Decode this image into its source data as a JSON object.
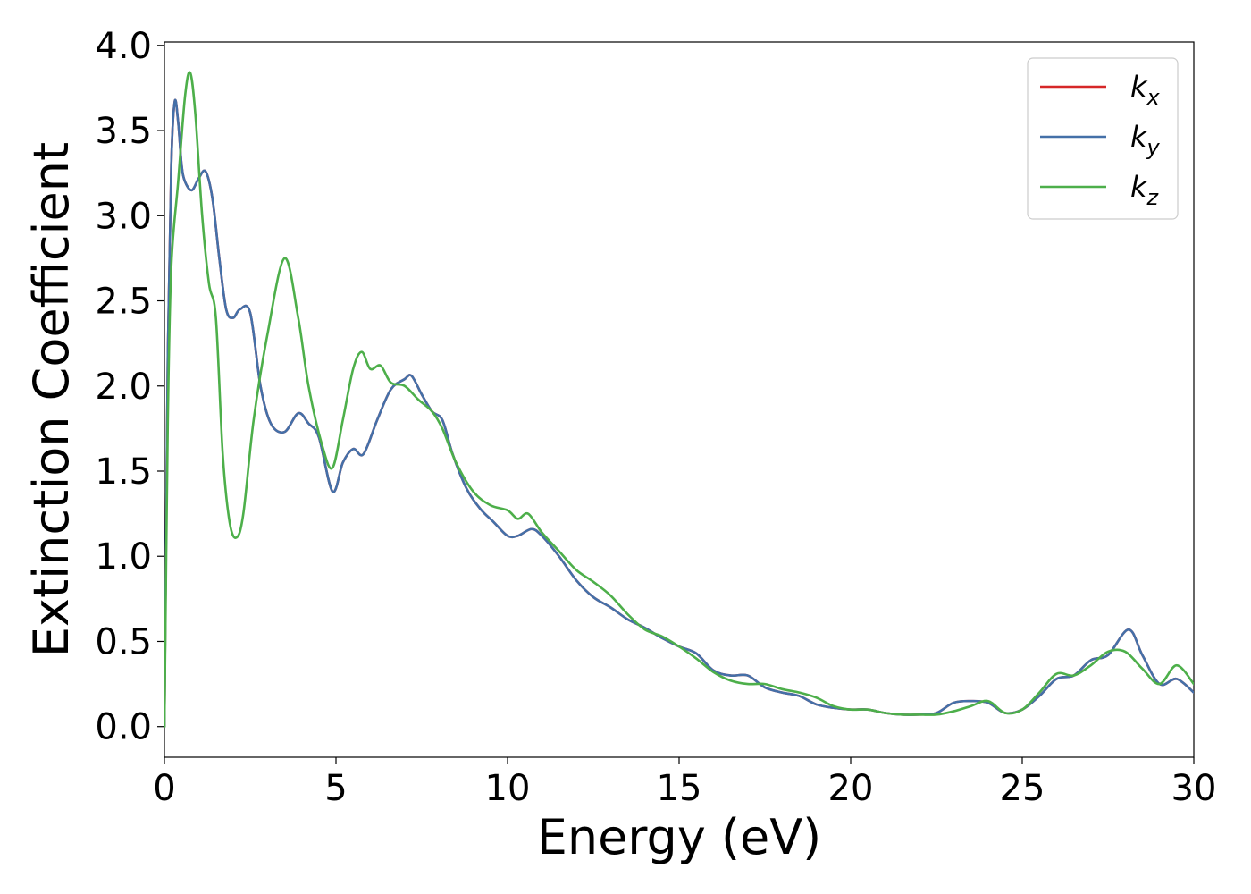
{
  "chart_data": {
    "type": "line",
    "xlabel": "Energy (eV)",
    "ylabel": "Extinction Coefficient",
    "xlim": [
      0,
      30
    ],
    "ylim": [
      -0.18,
      4.02
    ],
    "x_ticks": [
      "0",
      "5",
      "10",
      "15",
      "20",
      "25",
      "30"
    ],
    "y_ticks": [
      "0.0",
      "0.5",
      "1.0",
      "1.5",
      "2.0",
      "2.5",
      "3.0",
      "3.5",
      "4.0"
    ],
    "grid": false,
    "legend_position": "top-right",
    "series": [
      {
        "name": "k",
        "subscript": "x",
        "color": "#d62728",
        "x": [
          0,
          0.1,
          0.2,
          0.3,
          0.4,
          0.5,
          0.6,
          0.8,
          1.0,
          1.2,
          1.4,
          1.6,
          1.8,
          2.0,
          2.2,
          2.5,
          2.8,
          3.1,
          3.5,
          3.9,
          4.2,
          4.5,
          4.9,
          5.2,
          5.5,
          5.8,
          6.2,
          6.6,
          7.0,
          7.2,
          7.5,
          7.8,
          8.1,
          8.4,
          8.8,
          9.2,
          9.6,
          10.0,
          10.3,
          10.7,
          11.0,
          11.5,
          12.0,
          12.5,
          13.0,
          13.5,
          14.0,
          14.5,
          15.0,
          15.5,
          16.0,
          16.5,
          17.0,
          17.5,
          18.0,
          18.5,
          19.0,
          19.5,
          20.0,
          20.5,
          21.0,
          21.5,
          22.0,
          22.5,
          23.0,
          23.5,
          24.0,
          24.5,
          25.0,
          25.5,
          26.0,
          26.5,
          27.0,
          27.5,
          28.1,
          28.5,
          29.0,
          29.5,
          30.0
        ],
        "y": [
          0.0,
          2.2,
          3.3,
          3.67,
          3.55,
          3.3,
          3.2,
          3.15,
          3.22,
          3.26,
          3.1,
          2.75,
          2.45,
          2.4,
          2.45,
          2.43,
          2.0,
          1.78,
          1.73,
          1.84,
          1.78,
          1.7,
          1.38,
          1.55,
          1.63,
          1.6,
          1.8,
          1.98,
          2.04,
          2.06,
          1.95,
          1.85,
          1.8,
          1.6,
          1.4,
          1.28,
          1.2,
          1.12,
          1.12,
          1.16,
          1.12,
          1.0,
          0.86,
          0.76,
          0.7,
          0.63,
          0.58,
          0.52,
          0.47,
          0.43,
          0.33,
          0.3,
          0.3,
          0.23,
          0.2,
          0.18,
          0.13,
          0.11,
          0.1,
          0.1,
          0.08,
          0.07,
          0.07,
          0.08,
          0.14,
          0.15,
          0.14,
          0.08,
          0.1,
          0.18,
          0.28,
          0.3,
          0.39,
          0.42,
          0.57,
          0.42,
          0.25,
          0.28,
          0.2
        ]
      },
      {
        "name": "k",
        "subscript": "y",
        "color": "#4470a8",
        "x": [
          0,
          0.1,
          0.2,
          0.3,
          0.4,
          0.5,
          0.6,
          0.8,
          1.0,
          1.2,
          1.4,
          1.6,
          1.8,
          2.0,
          2.2,
          2.5,
          2.8,
          3.1,
          3.5,
          3.9,
          4.2,
          4.5,
          4.9,
          5.2,
          5.5,
          5.8,
          6.2,
          6.6,
          7.0,
          7.2,
          7.5,
          7.8,
          8.1,
          8.4,
          8.8,
          9.2,
          9.6,
          10.0,
          10.3,
          10.7,
          11.0,
          11.5,
          12.0,
          12.5,
          13.0,
          13.5,
          14.0,
          14.5,
          15.0,
          15.5,
          16.0,
          16.5,
          17.0,
          17.5,
          18.0,
          18.5,
          19.0,
          19.5,
          20.0,
          20.5,
          21.0,
          21.5,
          22.0,
          22.5,
          23.0,
          23.5,
          24.0,
          24.5,
          25.0,
          25.5,
          26.0,
          26.5,
          27.0,
          27.5,
          28.1,
          28.5,
          29.0,
          29.5,
          30.0
        ],
        "y": [
          0.0,
          2.2,
          3.3,
          3.67,
          3.55,
          3.3,
          3.2,
          3.15,
          3.22,
          3.26,
          3.1,
          2.75,
          2.45,
          2.4,
          2.45,
          2.43,
          2.0,
          1.78,
          1.73,
          1.84,
          1.78,
          1.7,
          1.38,
          1.55,
          1.63,
          1.6,
          1.8,
          1.98,
          2.04,
          2.06,
          1.95,
          1.85,
          1.8,
          1.6,
          1.4,
          1.28,
          1.2,
          1.12,
          1.12,
          1.16,
          1.12,
          1.0,
          0.86,
          0.76,
          0.7,
          0.63,
          0.58,
          0.52,
          0.47,
          0.43,
          0.33,
          0.3,
          0.3,
          0.23,
          0.2,
          0.18,
          0.13,
          0.11,
          0.1,
          0.1,
          0.08,
          0.07,
          0.07,
          0.08,
          0.14,
          0.15,
          0.14,
          0.08,
          0.1,
          0.18,
          0.28,
          0.3,
          0.39,
          0.42,
          0.57,
          0.42,
          0.25,
          0.28,
          0.2
        ]
      },
      {
        "name": "k",
        "subscript": "z",
        "color": "#4daf4a",
        "x": [
          0,
          0.1,
          0.2,
          0.4,
          0.6,
          0.75,
          0.9,
          1.1,
          1.3,
          1.5,
          1.7,
          1.9,
          2.1,
          2.3,
          2.6,
          3.0,
          3.5,
          3.9,
          4.2,
          4.6,
          4.9,
          5.2,
          5.5,
          5.75,
          6.0,
          6.3,
          6.6,
          7.0,
          7.4,
          7.8,
          8.1,
          8.5,
          9.0,
          9.5,
          10.0,
          10.3,
          10.6,
          11.0,
          11.5,
          12.0,
          12.5,
          13.0,
          13.5,
          14.0,
          14.5,
          15.0,
          15.5,
          16.0,
          16.5,
          17.0,
          17.5,
          18.0,
          18.5,
          19.0,
          19.5,
          20.0,
          20.5,
          21.0,
          21.5,
          22.0,
          22.5,
          23.0,
          23.5,
          24.0,
          24.5,
          25.0,
          25.5,
          26.0,
          26.5,
          27.0,
          27.5,
          28.0,
          28.5,
          29.0,
          29.5,
          30.0
        ],
        "y": [
          0.0,
          1.8,
          2.7,
          3.2,
          3.7,
          3.84,
          3.6,
          3.0,
          2.6,
          2.4,
          1.6,
          1.2,
          1.11,
          1.25,
          1.8,
          2.3,
          2.75,
          2.4,
          2.0,
          1.65,
          1.52,
          1.8,
          2.1,
          2.2,
          2.1,
          2.12,
          2.02,
          2.0,
          1.92,
          1.85,
          1.75,
          1.55,
          1.38,
          1.3,
          1.27,
          1.22,
          1.25,
          1.14,
          1.03,
          0.92,
          0.85,
          0.77,
          0.66,
          0.57,
          0.53,
          0.47,
          0.4,
          0.32,
          0.27,
          0.25,
          0.25,
          0.22,
          0.2,
          0.17,
          0.12,
          0.1,
          0.1,
          0.08,
          0.07,
          0.07,
          0.07,
          0.09,
          0.12,
          0.15,
          0.08,
          0.1,
          0.2,
          0.31,
          0.3,
          0.36,
          0.44,
          0.44,
          0.34,
          0.25,
          0.36,
          0.25
        ]
      }
    ]
  }
}
